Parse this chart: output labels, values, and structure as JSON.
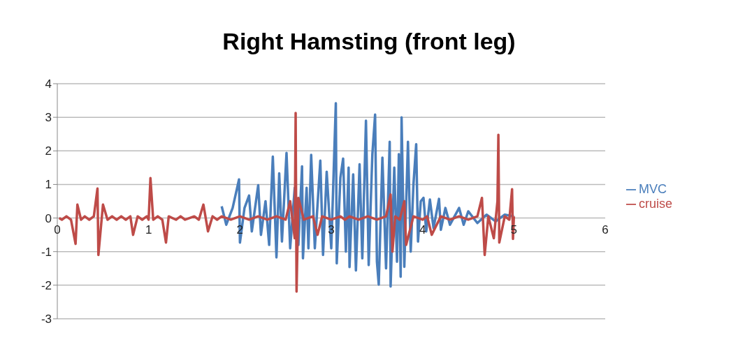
{
  "chart_data": {
    "type": "line",
    "title": "Right Hamsting (front leg)",
    "legend": "right",
    "grid": "y",
    "marker": "none",
    "line_style": "solid",
    "xlim": [
      0,
      6
    ],
    "xticks": [
      0,
      1,
      2,
      3,
      4,
      5,
      6
    ],
    "ylim": [
      -3,
      4
    ],
    "yticks": [
      -3,
      -2,
      -1,
      0,
      1,
      2,
      3,
      4
    ],
    "series": [
      {
        "name": "MVC",
        "color": "#4a7ebb",
        "x": [
          1.8,
          1.85,
          1.92,
          1.99,
          2.0,
          2.05,
          2.1,
          2.13,
          2.2,
          2.23,
          2.28,
          2.32,
          2.36,
          2.4,
          2.43,
          2.46,
          2.51,
          2.55,
          2.6,
          2.64,
          2.68,
          2.69,
          2.73,
          2.75,
          2.78,
          2.82,
          2.88,
          2.91,
          2.95,
          3.0,
          3.05,
          3.06,
          3.1,
          3.13,
          3.16,
          3.19,
          3.2,
          3.24,
          3.27,
          3.31,
          3.34,
          3.38,
          3.41,
          3.45,
          3.48,
          3.5,
          3.52,
          3.56,
          3.6,
          3.64,
          3.65,
          3.69,
          3.72,
          3.74,
          3.76,
          3.77,
          3.8,
          3.84,
          3.87,
          3.9,
          3.93,
          3.95,
          3.98,
          4.01,
          4.04,
          4.08,
          4.12,
          4.18,
          4.2,
          4.25,
          4.3,
          4.4,
          4.45,
          4.5,
          4.6,
          4.7,
          4.8,
          4.9,
          5.0
        ],
        "values": [
          0.35,
          -0.2,
          0.3,
          1.15,
          -0.73,
          0.3,
          0.67,
          -0.4,
          0.98,
          -0.5,
          0.5,
          -0.8,
          1.83,
          -1.17,
          1.33,
          -0.7,
          1.94,
          -0.9,
          0.9,
          -0.8,
          1.54,
          -1.2,
          0.9,
          -0.9,
          1.88,
          -0.9,
          1.71,
          -1.1,
          1.38,
          -0.9,
          3.42,
          -1.35,
          1.2,
          1.77,
          -1.0,
          1.5,
          -1.46,
          1.3,
          -1.56,
          1.6,
          -1.2,
          2.9,
          -1.4,
          1.9,
          3.08,
          -1.3,
          -1.98,
          1.8,
          -1.5,
          2.27,
          -2.04,
          1.5,
          -1.3,
          1.9,
          -1.75,
          3.0,
          -1.45,
          2.27,
          -1.0,
          1.0,
          2.2,
          -0.7,
          0.5,
          0.6,
          -0.4,
          0.55,
          -0.3,
          0.57,
          -0.35,
          0.3,
          -0.2,
          0.3,
          -0.2,
          0.2,
          -0.15,
          0.1,
          -0.1,
          0.1,
          0.05
        ]
      },
      {
        "name": "cruise",
        "color": "#be4b48",
        "x": [
          0.02,
          0.05,
          0.1,
          0.15,
          0.2,
          0.22,
          0.26,
          0.3,
          0.35,
          0.4,
          0.44,
          0.45,
          0.5,
          0.55,
          0.6,
          0.65,
          0.7,
          0.75,
          0.8,
          0.83,
          0.88,
          0.93,
          0.98,
          1.0,
          1.02,
          1.05,
          1.1,
          1.15,
          1.19,
          1.22,
          1.3,
          1.35,
          1.4,
          1.5,
          1.55,
          1.6,
          1.65,
          1.7,
          1.75,
          1.8,
          1.9,
          2.0,
          2.1,
          2.2,
          2.3,
          2.4,
          2.5,
          2.55,
          2.6,
          2.61,
          2.62,
          2.64,
          2.7,
          2.8,
          2.85,
          2.9,
          3.0,
          3.1,
          3.15,
          3.2,
          3.3,
          3.4,
          3.5,
          3.6,
          3.65,
          3.67,
          3.7,
          3.75,
          3.8,
          3.82,
          3.9,
          4.0,
          4.05,
          4.1,
          4.2,
          4.3,
          4.4,
          4.5,
          4.6,
          4.65,
          4.68,
          4.72,
          4.78,
          4.82,
          4.83,
          4.84,
          4.9,
          4.95,
          4.98,
          4.99,
          5.0
        ],
        "values": [
          0,
          -0.05,
          0.05,
          -0.05,
          -0.77,
          0.4,
          -0.05,
          0.05,
          -0.05,
          0.05,
          0.88,
          -1.1,
          0.4,
          -0.05,
          0.05,
          -0.05,
          0.05,
          -0.05,
          0.05,
          -0.5,
          0.05,
          -0.05,
          0.05,
          -0.05,
          1.19,
          -0.05,
          0.05,
          -0.05,
          -0.73,
          0.05,
          -0.05,
          0.05,
          -0.05,
          0.05,
          -0.05,
          0.4,
          -0.4,
          0.05,
          -0.05,
          0.05,
          -0.05,
          0.05,
          -0.05,
          0.05,
          -0.05,
          0.05,
          -0.05,
          0.5,
          -0.6,
          3.13,
          -2.19,
          0.6,
          -0.05,
          0.05,
          -0.5,
          0.05,
          -0.05,
          0.05,
          -0.05,
          0.05,
          -0.05,
          0.05,
          -0.05,
          0.05,
          0.7,
          -1.0,
          0.05,
          -0.05,
          0.5,
          -0.8,
          0.05,
          -0.05,
          0.05,
          -0.5,
          0.05,
          -0.05,
          0.05,
          -0.05,
          0.05,
          0.6,
          -1.1,
          0.05,
          -0.6,
          0.5,
          2.48,
          -0.73,
          0.05,
          -0.05,
          0.86,
          -0.62,
          0.05
        ]
      }
    ]
  }
}
